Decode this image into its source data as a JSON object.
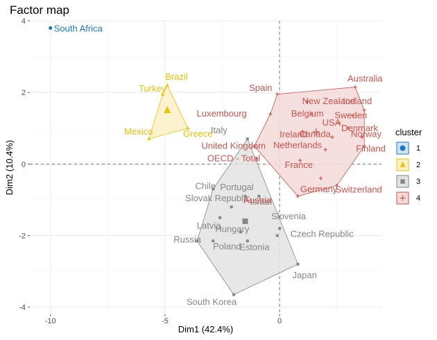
{
  "chart_data": {
    "type": "scatter",
    "title": "Factor map",
    "xlabel": "Dim1 (42.4%)",
    "ylabel": "Dim2 (10.4%)",
    "xlim": [
      -10.9,
      4.45
    ],
    "ylim": [
      -4.2,
      4.0
    ],
    "xticks": [
      -10,
      -5,
      0
    ],
    "yticks": [
      -4,
      -2,
      0,
      2,
      4
    ],
    "grid": true,
    "legend_position": "right",
    "legend_title": "cluster",
    "clusters": [
      {
        "id": "1",
        "color": "#1A78C2",
        "fill": "#D1E4F3",
        "marker": "circle",
        "center": [
          -10.0,
          3.8
        ],
        "hull": [],
        "points": [
          {
            "label": "South Africa",
            "x": -10.0,
            "y": 3.8
          }
        ]
      },
      {
        "id": "2",
        "color": "#EFC000",
        "fill": "#FBF0C8",
        "marker": "triangle",
        "center": [
          -4.9,
          1.5
        ],
        "hull": [
          [
            -4.9,
            2.2
          ],
          [
            -4.0,
            1.0
          ],
          [
            -5.7,
            0.7
          ],
          [
            -5.1,
            1.95
          ]
        ],
        "points": [
          {
            "label": "Brazil",
            "x": -4.9,
            "y": 2.2
          },
          {
            "label": "Turkey",
            "x": -5.1,
            "y": 1.95
          },
          {
            "label": "Mexico",
            "x": -5.7,
            "y": 0.7
          },
          {
            "label": "Greece",
            "x": -4.0,
            "y": 1.0
          }
        ]
      },
      {
        "id": "3",
        "color": "#868686",
        "fill": "#E3E3E3",
        "marker": "square",
        "center": [
          -1.5,
          -1.6
        ],
        "hull": [
          [
            -1.4,
            0.7
          ],
          [
            0.8,
            -2.8
          ],
          [
            -2.0,
            -3.65
          ],
          [
            -3.6,
            -2.15
          ],
          [
            -2.9,
            -0.7
          ]
        ],
        "points": [
          {
            "label": "Italy",
            "x": -1.4,
            "y": 0.7
          },
          {
            "label": "Israel",
            "x": -0.9,
            "y": -0.9
          },
          {
            "label": "Chile",
            "x": -2.9,
            "y": -0.7
          },
          {
            "label": "Portugal",
            "x": -1.5,
            "y": -0.9
          },
          {
            "label": "Slovak Republic",
            "x": -2.1,
            "y": -1.2
          },
          {
            "label": "Latvia",
            "x": -2.6,
            "y": -1.5
          },
          {
            "label": "Slovenia",
            "x": 0.0,
            "y": -1.8
          },
          {
            "label": "Hungary",
            "x": -1.7,
            "y": -1.9
          },
          {
            "label": "Czech Republic",
            "x": -0.1,
            "y": -2.0
          },
          {
            "label": "Russia",
            "x": -3.6,
            "y": -2.15
          },
          {
            "label": "Poland",
            "x": -2.9,
            "y": -2.15
          },
          {
            "label": "Estonia",
            "x": -1.4,
            "y": -2.15
          },
          {
            "label": "Japan",
            "x": 0.8,
            "y": -2.8
          },
          {
            "label": "South Korea",
            "x": -2.0,
            "y": -3.65
          }
        ]
      },
      {
        "id": "4",
        "color": "#CD534C",
        "fill": "#F5DAD9",
        "marker": "cross",
        "center": [
          1.6,
          0.9
        ],
        "hull": [
          [
            -0.1,
            1.95
          ],
          [
            3.3,
            2.15
          ],
          [
            3.7,
            1.5
          ],
          [
            3.7,
            0.5
          ],
          [
            2.5,
            -0.6
          ],
          [
            0.8,
            -0.9
          ],
          [
            -1.1,
            0.5
          ],
          [
            -0.4,
            1.4
          ]
        ],
        "points": [
          {
            "label": "Australia",
            "x": 3.3,
            "y": 2.15
          },
          {
            "label": "Spain",
            "x": -0.1,
            "y": 1.95
          },
          {
            "label": "New Zealand",
            "x": 1.2,
            "y": 1.75
          },
          {
            "label": "Iceland",
            "x": 3.7,
            "y": 1.5
          },
          {
            "label": "Belgium",
            "x": 1.4,
            "y": 1.4
          },
          {
            "label": "Sweden",
            "x": 3.2,
            "y": 1.35
          },
          {
            "label": "Luxembourg",
            "x": -0.4,
            "y": 1.4
          },
          {
            "label": "USA",
            "x": 2.6,
            "y": 1.15
          },
          {
            "label": "Ireland",
            "x": 1.0,
            "y": 0.9
          },
          {
            "label": "Denmark",
            "x": 3.0,
            "y": 1.0
          },
          {
            "label": "Canada",
            "x": 2.3,
            "y": 0.75
          },
          {
            "label": "United Kingdom",
            "x": -1.1,
            "y": 0.5
          },
          {
            "label": "Norway",
            "x": 3.6,
            "y": 0.75
          },
          {
            "label": "Netherlands",
            "x": 2.0,
            "y": 0.4
          },
          {
            "label": "OECD - Total",
            "x": -1.0,
            "y": 0.15
          },
          {
            "label": "France",
            "x": 0.9,
            "y": 0.1
          },
          {
            "label": "Finland",
            "x": 3.7,
            "y": 0.5
          },
          {
            "label": "Switzerland",
            "x": 2.5,
            "y": -0.6
          },
          {
            "label": "Austria",
            "x": 0.8,
            "y": -0.9
          },
          {
            "label": "Germany",
            "x": 1.8,
            "y": -0.4
          }
        ]
      }
    ]
  }
}
